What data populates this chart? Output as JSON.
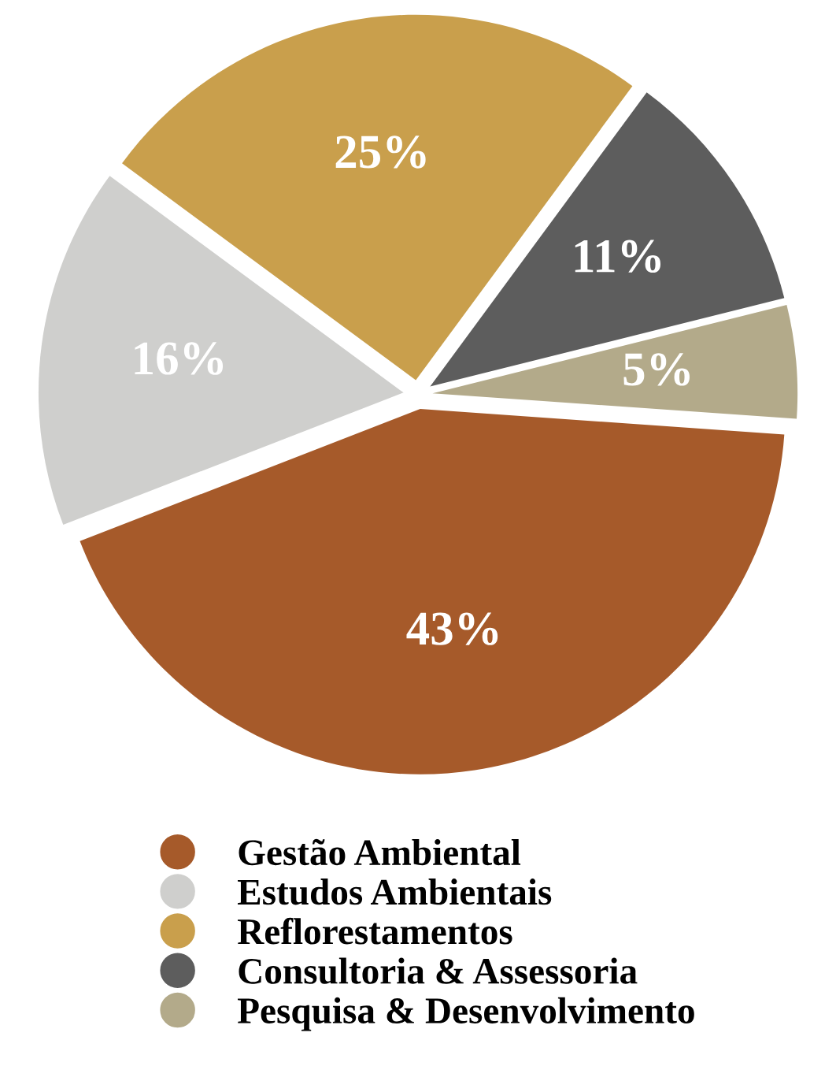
{
  "chart_data": {
    "type": "pie",
    "categories": [
      "Gestão Ambiental",
      "Estudos Ambientais",
      "Reflorestamentos",
      "Consultoria & Assessoria",
      "Pesquisa & Desenvolvimento"
    ],
    "values": [
      43,
      16,
      25,
      11,
      5
    ],
    "value_labels": [
      "43%",
      "16%",
      "25%",
      "11%",
      "5%"
    ],
    "colors": [
      "#a65a2a",
      "#cfcfcd",
      "#c99f4c",
      "#5d5d5d",
      "#b3aa8a"
    ],
    "legend": "bottom"
  }
}
